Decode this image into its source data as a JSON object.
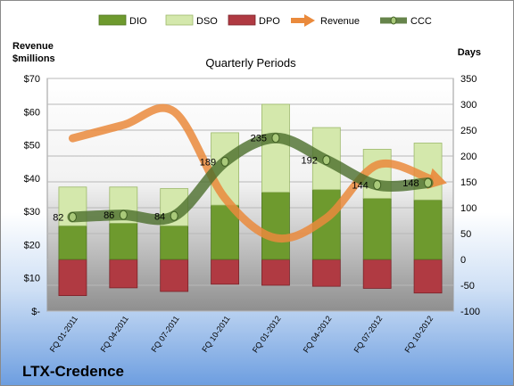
{
  "company": "LTX-Credence",
  "colors": {
    "dio": "#6e9a2e",
    "dso": "#d4e8ac",
    "dpo": "#b03a42",
    "revenue": "#ea8a3c",
    "ccc": "#4b6e2c"
  },
  "chart_data": {
    "type": "bar",
    "title": "Quarterly Periods",
    "ylabel_left": "Revenue\n$millions",
    "ylabel_right": "Days",
    "categories": [
      "FQ 01-2011",
      "FQ 04-2011",
      "FQ 07-2011",
      "FQ 10-2011",
      "FQ 01-2012",
      "FQ 04-2012",
      "FQ 07-2012",
      "FQ 10-2012"
    ],
    "legend": [
      "DIO",
      "DSO",
      "DPO",
      "Revenue",
      "CCC"
    ],
    "legend_position": "top",
    "left_axis": {
      "min": 0,
      "max": 70,
      "step": 10,
      "tick_labels": [
        "$-",
        "$10",
        "$20",
        "$30",
        "$40",
        "$50",
        "$60",
        "$70"
      ]
    },
    "right_axis": {
      "min": -100,
      "max": 350,
      "step": 50,
      "tick_labels": [
        "-100",
        "-50",
        "0",
        "50",
        "100",
        "150",
        "200",
        "250",
        "300",
        "350"
      ]
    },
    "series": [
      {
        "name": "DIO",
        "axis": "right",
        "values": [
          65,
          70,
          65,
          105,
          130,
          135,
          118,
          115
        ]
      },
      {
        "name": "DSO",
        "axis": "right",
        "values": [
          75,
          70,
          72,
          140,
          170,
          120,
          95,
          110
        ]
      },
      {
        "name": "DPO",
        "axis": "right",
        "values": [
          -70,
          -55,
          -62,
          -48,
          -50,
          -52,
          -56,
          -65
        ]
      },
      {
        "name": "Revenue",
        "axis": "left",
        "values": [
          52,
          56,
          60,
          34,
          22,
          28,
          44,
          40
        ]
      },
      {
        "name": "CCC",
        "axis": "right",
        "values": [
          82,
          86,
          84,
          189,
          235,
          192,
          144,
          148
        ],
        "labels": [
          "82",
          "86",
          "84",
          "189",
          "235",
          "192",
          "144",
          "148"
        ]
      }
    ],
    "grid": true
  }
}
